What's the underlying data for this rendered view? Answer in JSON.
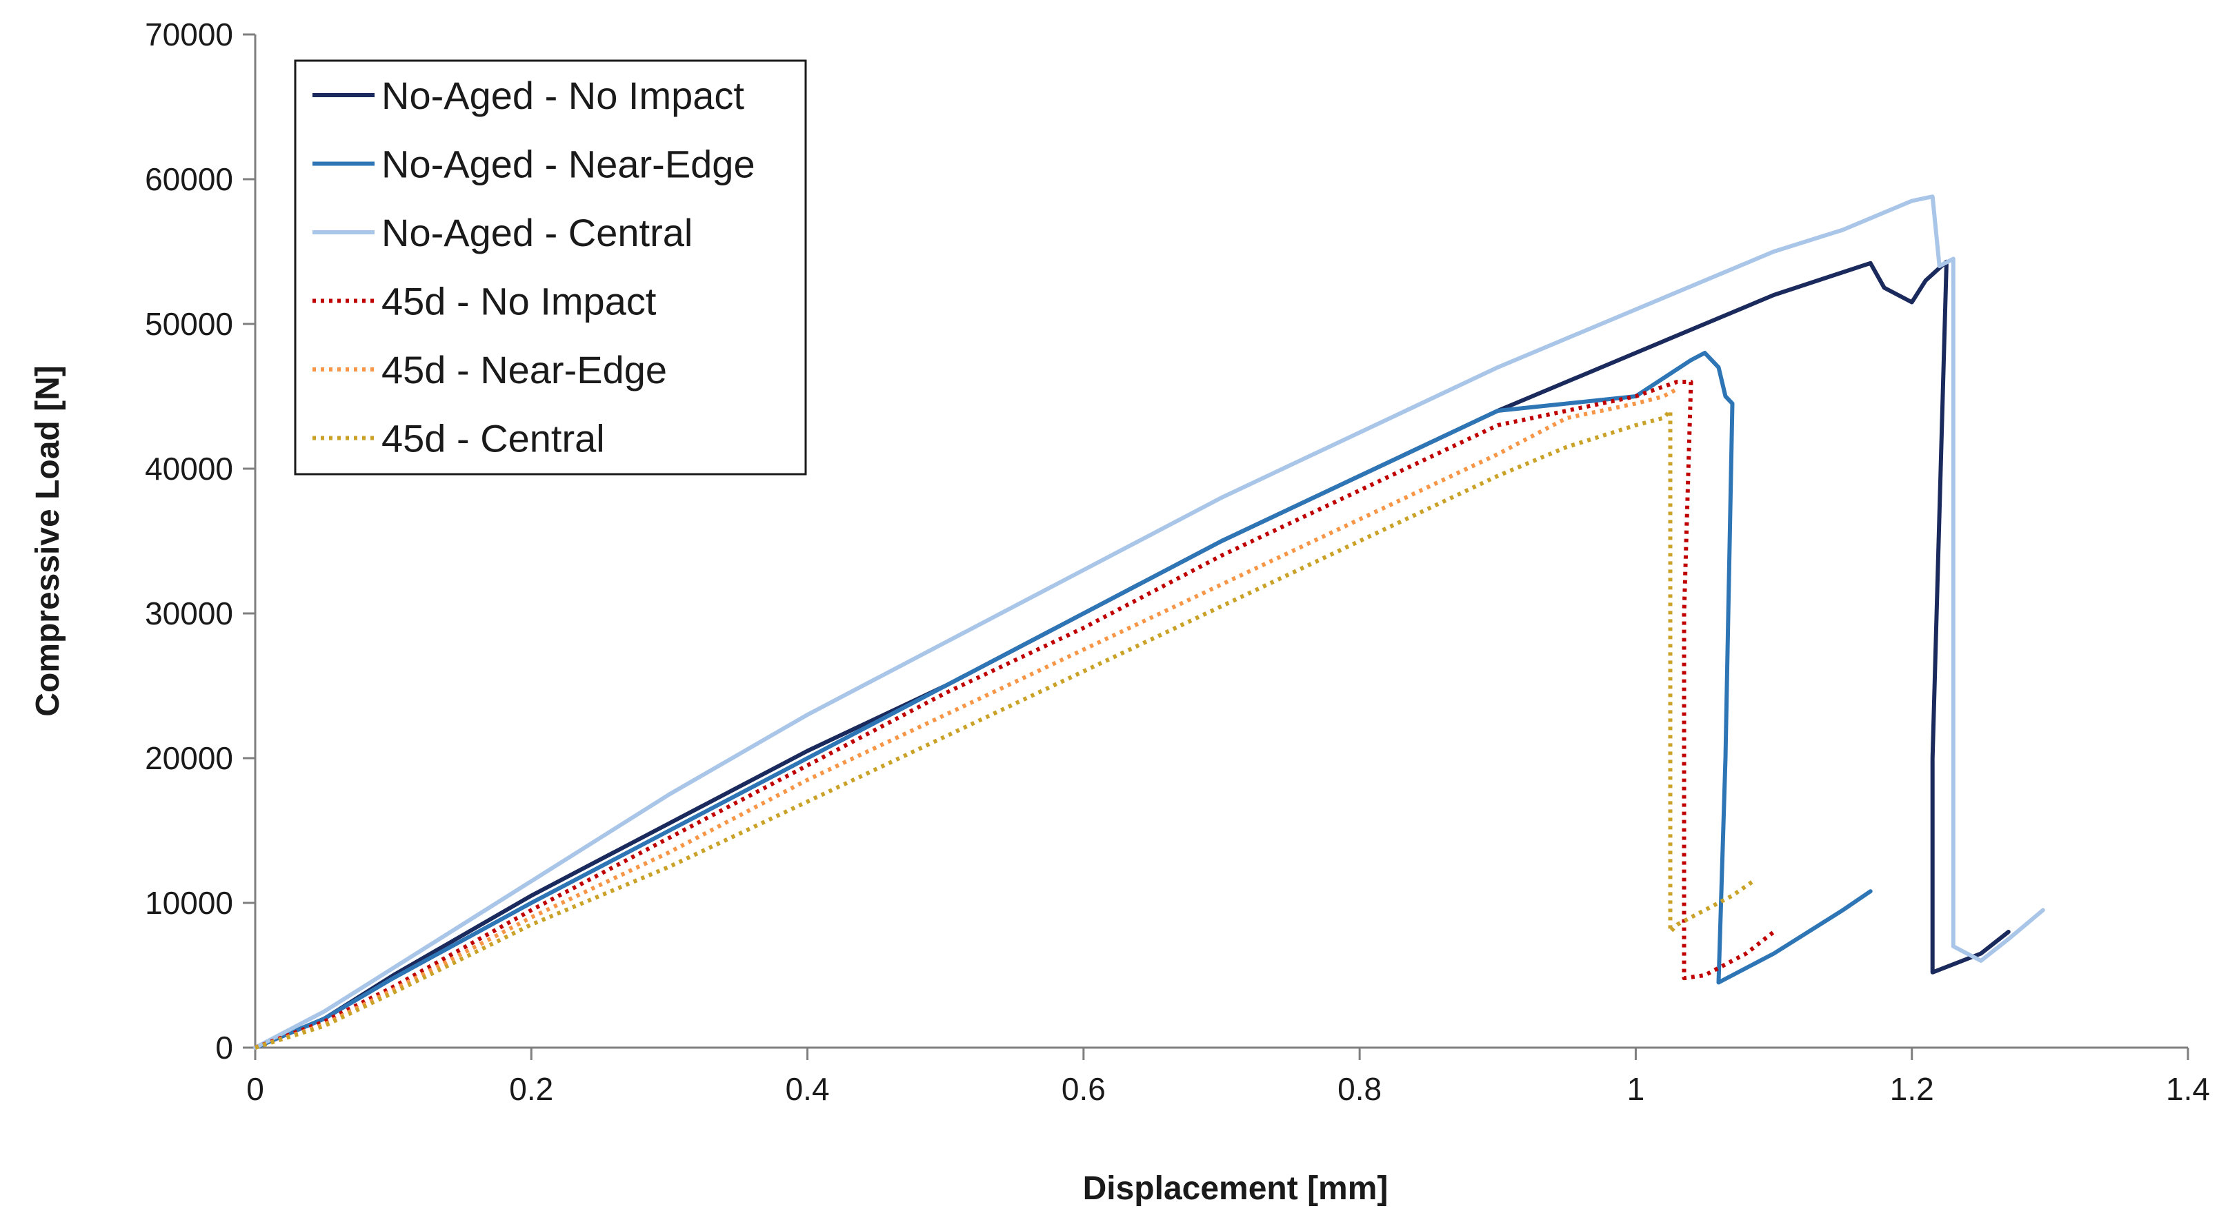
{
  "chart_data": {
    "type": "line",
    "title": "",
    "xlabel": "Displacement [mm]",
    "ylabel": "Compressive Load [N]",
    "xlim": [
      0,
      1.4
    ],
    "ylim": [
      0,
      70000
    ],
    "xticks": [
      0,
      0.2,
      0.4,
      0.6,
      0.8,
      1,
      1.2,
      1.4
    ],
    "xtick_labels": [
      "0",
      "0.2",
      "0.4",
      "0.6",
      "0.8",
      "1",
      "1.2",
      "1.4"
    ],
    "yticks": [
      0,
      10000,
      20000,
      30000,
      40000,
      50000,
      60000,
      70000
    ],
    "ytick_labels": [
      "0",
      "10000",
      "20000",
      "30000",
      "40000",
      "50000",
      "60000",
      "70000"
    ],
    "grid": false,
    "legend_position": "top-left",
    "series": [
      {
        "name": "No-Aged - No Impact",
        "color": "#1b2a5c",
        "dash": "solid",
        "x": [
          0,
          0.05,
          0.1,
          0.2,
          0.3,
          0.4,
          0.5,
          0.6,
          0.7,
          0.8,
          0.9,
          1.0,
          1.1,
          1.17,
          1.18,
          1.2,
          1.21,
          1.225,
          1.225,
          1.215,
          1.215,
          1.25,
          1.27
        ],
        "y": [
          0,
          2000,
          5000,
          10500,
          15500,
          20500,
          25000,
          30000,
          35000,
          39500,
          44000,
          48000,
          52000,
          54200,
          52500,
          51500,
          53000,
          54300,
          54000,
          20000,
          5200,
          6500,
          8000
        ]
      },
      {
        "name": "No-Aged - Near-Edge",
        "color": "#2e75b6",
        "dash": "solid",
        "x": [
          0,
          0.05,
          0.1,
          0.2,
          0.3,
          0.4,
          0.5,
          0.6,
          0.7,
          0.8,
          0.9,
          1.0,
          1.04,
          1.05,
          1.06,
          1.065,
          1.07,
          1.065,
          1.06,
          1.1,
          1.15,
          1.17
        ],
        "y": [
          0,
          2000,
          4800,
          10000,
          15000,
          20000,
          25000,
          30000,
          35000,
          39500,
          44000,
          45000,
          47500,
          48000,
          47000,
          45000,
          44500,
          20000,
          4500,
          6500,
          9500,
          10800
        ]
      },
      {
        "name": "No-Aged - Central",
        "color": "#a9c6e8",
        "dash": "solid",
        "x": [
          0,
          0.05,
          0.1,
          0.2,
          0.3,
          0.4,
          0.5,
          0.6,
          0.7,
          0.8,
          0.9,
          1.0,
          1.1,
          1.15,
          1.2,
          1.215,
          1.22,
          1.23,
          1.23,
          1.25,
          1.27,
          1.295
        ],
        "y": [
          0,
          2500,
          5500,
          11500,
          17500,
          23000,
          28000,
          33000,
          38000,
          42500,
          47000,
          51000,
          55000,
          56500,
          58500,
          58800,
          54000,
          54500,
          7000,
          6000,
          7500,
          9500
        ]
      },
      {
        "name": "45d - No Impact",
        "color": "#c00000",
        "dash": "dotted",
        "x": [
          0,
          0.05,
          0.1,
          0.2,
          0.3,
          0.4,
          0.5,
          0.6,
          0.7,
          0.8,
          0.9,
          0.95,
          1.0,
          1.03,
          1.04,
          1.035,
          1.035,
          1.05,
          1.08,
          1.1
        ],
        "y": [
          0,
          1800,
          4200,
          9500,
          14500,
          19500,
          24500,
          29000,
          34000,
          38500,
          43000,
          44000,
          45000,
          46000,
          46000,
          30000,
          4800,
          5000,
          6500,
          8000
        ]
      },
      {
        "name": "45d - Near-Edge",
        "color": "#f79646",
        "dash": "dotted",
        "x": [
          0,
          0.05,
          0.1,
          0.2,
          0.3,
          0.4,
          0.5,
          0.6,
          0.7,
          0.8,
          0.9,
          0.94,
          0.95,
          1.0,
          1.02,
          1.03
        ],
        "y": [
          0,
          1600,
          4000,
          9000,
          13500,
          18500,
          23000,
          27500,
          32000,
          36500,
          41000,
          43000,
          43500,
          44500,
          45000,
          45500
        ]
      },
      {
        "name": "45d - Central",
        "color": "#c9a227",
        "dash": "dotted",
        "x": [
          0,
          0.05,
          0.1,
          0.2,
          0.3,
          0.4,
          0.5,
          0.6,
          0.7,
          0.8,
          0.9,
          0.95,
          1.0,
          1.02,
          1.025,
          1.025,
          1.03,
          1.05,
          1.07,
          1.085
        ],
        "y": [
          0,
          1500,
          3800,
          8500,
          12500,
          17000,
          21500,
          26000,
          30500,
          35000,
          39500,
          41500,
          43000,
          43500,
          44000,
          8000,
          8500,
          9500,
          10500,
          11500
        ]
      }
    ]
  }
}
